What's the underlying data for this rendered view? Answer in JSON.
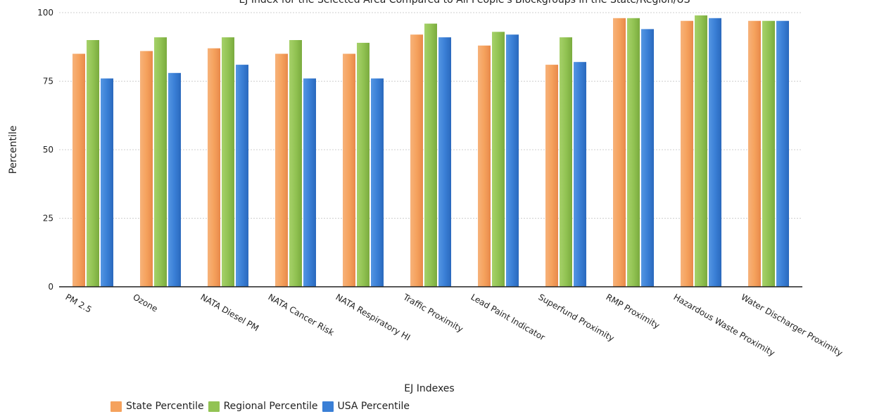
{
  "chart_data": {
    "type": "bar",
    "title": "EJ Index for the Selected Area Compared to All People's Blockgroups in the State/Region/US",
    "xlabel": "EJ Indexes",
    "ylabel": "Percentile",
    "ylim": [
      0,
      100
    ],
    "yticks": [
      0,
      25,
      50,
      75,
      100
    ],
    "grid": true,
    "legend_position": "bottom",
    "categories": [
      "PM 2.5",
      "Ozone",
      "NATA Diesel PM",
      "NATA Cancer Risk",
      "NATA Respiratory HI",
      "Traffic Proximity",
      "Lead Paint Indicator",
      "Superfund Proximity",
      "RMP Proximity",
      "Hazardous Waste Proximity",
      "Water Discharger Proximity"
    ],
    "series": [
      {
        "name": "State Percentile",
        "color": "#f5a25d",
        "values": [
          85,
          86,
          87,
          85,
          85,
          92,
          88,
          81,
          98,
          97,
          97
        ]
      },
      {
        "name": "Regional Percentile",
        "color": "#92c353",
        "values": [
          90,
          91,
          91,
          90,
          89,
          96,
          93,
          91,
          98,
          99,
          97
        ]
      },
      {
        "name": "USA Percentile",
        "color": "#3a7fd6",
        "values": [
          76,
          78,
          81,
          76,
          76,
          91,
          92,
          82,
          94,
          98,
          97
        ]
      }
    ]
  }
}
